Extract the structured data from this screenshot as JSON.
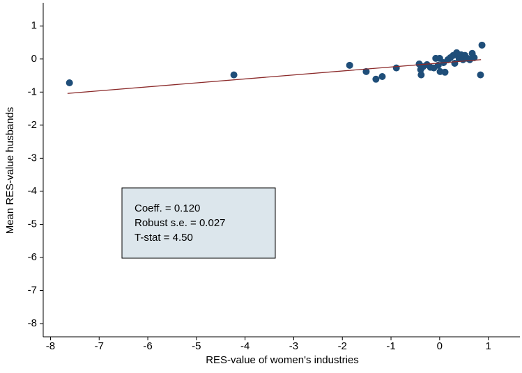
{
  "chart_data": {
    "type": "scatter",
    "xlabel": "RES-value of women's industries",
    "ylabel": "Mean RES-value husbands",
    "xlim": [
      -8.15,
      1.65
    ],
    "ylim": [
      -8.4,
      1.7
    ],
    "xticks": [
      -8,
      -7,
      -6,
      -5,
      -4,
      -3,
      -2,
      -1,
      0,
      1
    ],
    "yticks": [
      1,
      0,
      -1,
      -2,
      -3,
      -4,
      -5,
      -6,
      -7,
      -8
    ],
    "grid": false,
    "color": "#1f4e79",
    "x": [
      -7.61,
      -4.23,
      -1.85,
      -1.51,
      -1.31,
      -1.18,
      -0.89,
      -0.42,
      -0.39,
      -0.38,
      -0.34,
      -0.26,
      -0.19,
      -0.12,
      -0.08,
      -0.03,
      0.0,
      0.01,
      0.08,
      0.11,
      0.17,
      0.22,
      0.28,
      0.31,
      0.35,
      0.4,
      0.44,
      0.48,
      0.52,
      0.57,
      0.62,
      0.67,
      0.71,
      0.84,
      0.87
    ],
    "values": [
      -0.72,
      -0.48,
      -0.19,
      -0.38,
      -0.61,
      -0.53,
      -0.27,
      -0.15,
      -0.32,
      -0.48,
      -0.23,
      -0.17,
      -0.25,
      -0.27,
      0.02,
      -0.19,
      0.02,
      -0.38,
      -0.11,
      -0.4,
      -0.02,
      0.04,
      0.11,
      -0.13,
      0.19,
      0.02,
      0.13,
      -0.02,
      0.11,
      0.02,
      -0.02,
      0.17,
      0.04,
      -0.48,
      0.42
    ],
    "fit_line": {
      "color": "#8b2a2a",
      "x": [
        -7.65,
        0.85
      ],
      "values": [
        -1.04,
        -0.02
      ]
    },
    "annotation": [
      "Coeff. = 0.120",
      "Robust s.e. = 0.027",
      "T-stat = 4.50"
    ]
  }
}
